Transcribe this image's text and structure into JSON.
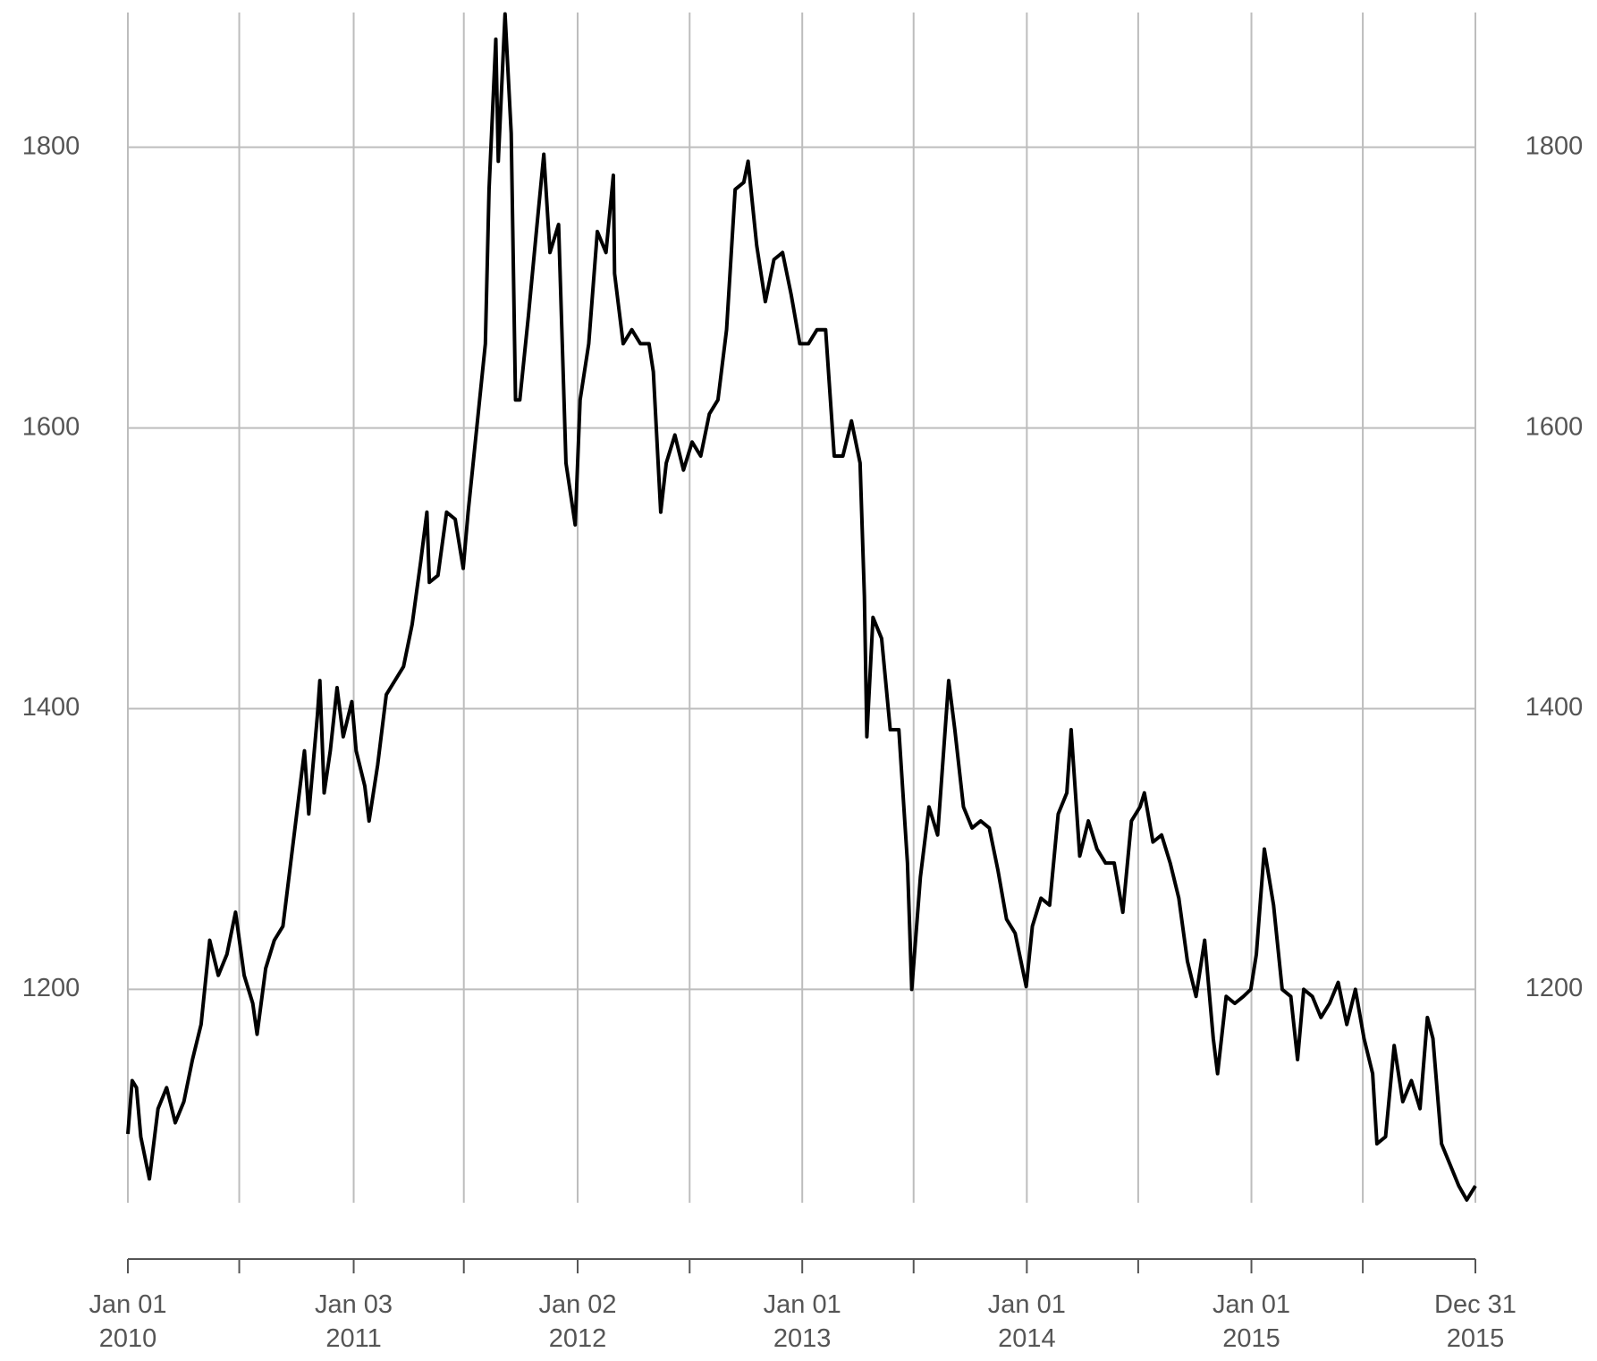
{
  "chart_data": {
    "type": "line",
    "color": "#000000",
    "grid": true,
    "x": [
      "2010-01-01",
      "2010-01-08",
      "2010-01-15",
      "2010-01-22",
      "2010-02-05",
      "2010-02-12",
      "2010-02-19",
      "2010-03-05",
      "2010-03-19",
      "2010-04-02",
      "2010-04-16",
      "2010-04-30",
      "2010-05-14",
      "2010-05-28",
      "2010-06-11",
      "2010-06-25",
      "2010-07-09",
      "2010-07-23",
      "2010-07-30",
      "2010-08-13",
      "2010-08-27",
      "2010-09-10",
      "2010-09-24",
      "2010-10-08",
      "2010-10-15",
      "2010-10-22",
      "2010-11-05",
      "2010-11-09",
      "2010-11-16",
      "2010-11-26",
      "2010-12-07",
      "2010-12-17",
      "2010-12-31",
      "2011-01-07",
      "2011-01-21",
      "2011-01-28",
      "2011-02-11",
      "2011-02-25",
      "2011-03-11",
      "2011-03-25",
      "2011-04-08",
      "2011-04-22",
      "2011-05-02",
      "2011-05-06",
      "2011-05-20",
      "2011-06-03",
      "2011-06-17",
      "2011-06-30",
      "2011-07-08",
      "2011-07-22",
      "2011-08-05",
      "2011-08-11",
      "2011-08-22",
      "2011-08-26",
      "2011-09-06",
      "2011-09-16",
      "2011-09-23",
      "2011-09-30",
      "2011-10-14",
      "2011-10-28",
      "2011-11-08",
      "2011-11-18",
      "2011-12-02",
      "2011-12-14",
      "2011-12-29",
      "2012-01-06",
      "2012-01-20",
      "2012-02-03",
      "2012-02-17",
      "2012-02-29",
      "2012-03-02",
      "2012-03-16",
      "2012-03-30",
      "2012-04-13",
      "2012-04-27",
      "2012-05-04",
      "2012-05-16",
      "2012-05-25",
      "2012-06-08",
      "2012-06-22",
      "2012-07-06",
      "2012-07-20",
      "2012-08-03",
      "2012-08-17",
      "2012-08-31",
      "2012-09-14",
      "2012-09-28",
      "2012-10-05",
      "2012-10-19",
      "2012-11-02",
      "2012-11-16",
      "2012-11-30",
      "2012-12-14",
      "2012-12-28",
      "2013-01-11",
      "2013-01-25",
      "2013-02-08",
      "2013-02-22",
      "2013-03-08",
      "2013-03-22",
      "2013-04-05",
      "2013-04-12",
      "2013-04-16",
      "2013-04-26",
      "2013-05-10",
      "2013-05-24",
      "2013-06-07",
      "2013-06-21",
      "2013-06-28",
      "2013-07-12",
      "2013-07-26",
      "2013-08-09",
      "2013-08-27",
      "2013-09-06",
      "2013-09-20",
      "2013-10-04",
      "2013-10-18",
      "2013-11-01",
      "2013-11-15",
      "2013-11-29",
      "2013-12-13",
      "2013-12-31",
      "2014-01-10",
      "2014-01-24",
      "2014-02-07",
      "2014-02-21",
      "2014-03-07",
      "2014-03-14",
      "2014-03-28",
      "2014-04-11",
      "2014-04-25",
      "2014-05-09",
      "2014-05-23",
      "2014-06-06",
      "2014-06-20",
      "2014-07-04",
      "2014-07-11",
      "2014-07-25",
      "2014-08-08",
      "2014-08-22",
      "2014-09-05",
      "2014-09-19",
      "2014-10-03",
      "2014-10-17",
      "2014-10-31",
      "2014-11-07",
      "2014-11-21",
      "2014-12-05",
      "2014-12-19",
      "2014-12-31",
      "2015-01-09",
      "2015-01-22",
      "2015-02-06",
      "2015-02-20",
      "2015-03-06",
      "2015-03-17",
      "2015-03-27",
      "2015-04-10",
      "2015-04-24",
      "2015-05-08",
      "2015-05-22",
      "2015-06-05",
      "2015-06-19",
      "2015-07-03",
      "2015-07-17",
      "2015-07-24",
      "2015-08-07",
      "2015-08-21",
      "2015-09-04",
      "2015-09-18",
      "2015-10-02",
      "2015-10-14",
      "2015-10-23",
      "2015-11-06",
      "2015-11-20",
      "2015-12-04",
      "2015-12-17",
      "2015-12-31"
    ],
    "values": [
      1097,
      1135,
      1130,
      1095,
      1065,
      1090,
      1115,
      1130,
      1105,
      1120,
      1150,
      1175,
      1235,
      1210,
      1225,
      1255,
      1210,
      1190,
      1168,
      1215,
      1235,
      1245,
      1295,
      1345,
      1370,
      1325,
      1395,
      1420,
      1340,
      1370,
      1415,
      1380,
      1405,
      1370,
      1345,
      1320,
      1360,
      1410,
      1420,
      1430,
      1460,
      1505,
      1540,
      1490,
      1495,
      1540,
      1535,
      1500,
      1540,
      1600,
      1660,
      1770,
      1877,
      1790,
      1895,
      1810,
      1620,
      1620,
      1680,
      1745,
      1795,
      1725,
      1745,
      1575,
      1531,
      1620,
      1660,
      1740,
      1725,
      1780,
      1710,
      1660,
      1670,
      1660,
      1660,
      1640,
      1540,
      1575,
      1595,
      1570,
      1590,
      1580,
      1610,
      1620,
      1670,
      1770,
      1775,
      1790,
      1730,
      1690,
      1720,
      1725,
      1695,
      1660,
      1660,
      1670,
      1670,
      1580,
      1580,
      1605,
      1575,
      1480,
      1380,
      1465,
      1450,
      1385,
      1385,
      1290,
      1200,
      1280,
      1330,
      1310,
      1420,
      1385,
      1330,
      1315,
      1320,
      1315,
      1285,
      1250,
      1240,
      1202,
      1245,
      1265,
      1260,
      1325,
      1340,
      1385,
      1295,
      1320,
      1300,
      1290,
      1290,
      1255,
      1320,
      1330,
      1340,
      1305,
      1310,
      1290,
      1265,
      1220,
      1195,
      1235,
      1165,
      1140,
      1195,
      1190,
      1195,
      1200,
      1225,
      1300,
      1260,
      1200,
      1195,
      1150,
      1200,
      1195,
      1180,
      1190,
      1205,
      1175,
      1200,
      1165,
      1140,
      1090,
      1095,
      1160,
      1120,
      1135,
      1115,
      1180,
      1165,
      1090,
      1075,
      1060,
      1050,
      1060
    ],
    "xlim": [
      "2010-01-01",
      "2015-12-31"
    ],
    "xticks": [
      {
        "value": "2010-01-01",
        "label": "Jan 01\n2010"
      },
      {
        "value": "2010-07-01",
        "label": null
      },
      {
        "value": "2011-01-03",
        "label": "Jan 03\n2011"
      },
      {
        "value": "2011-07-01",
        "label": null
      },
      {
        "value": "2012-01-02",
        "label": "Jan 02\n2012"
      },
      {
        "value": "2012-07-02",
        "label": null
      },
      {
        "value": "2013-01-01",
        "label": "Jan 01\n2013"
      },
      {
        "value": "2013-07-01",
        "label": null
      },
      {
        "value": "2014-01-01",
        "label": "Jan 01\n2014"
      },
      {
        "value": "2014-07-01",
        "label": null
      },
      {
        "value": "2015-01-01",
        "label": "Jan 01\n2015"
      },
      {
        "value": "2015-07-01",
        "label": null
      },
      {
        "value": "2015-12-31",
        "label": "Dec 31\n2015"
      }
    ],
    "ylim": [
      1048,
      1896
    ],
    "yticks": [
      1200,
      1400,
      1600,
      1800
    ]
  }
}
